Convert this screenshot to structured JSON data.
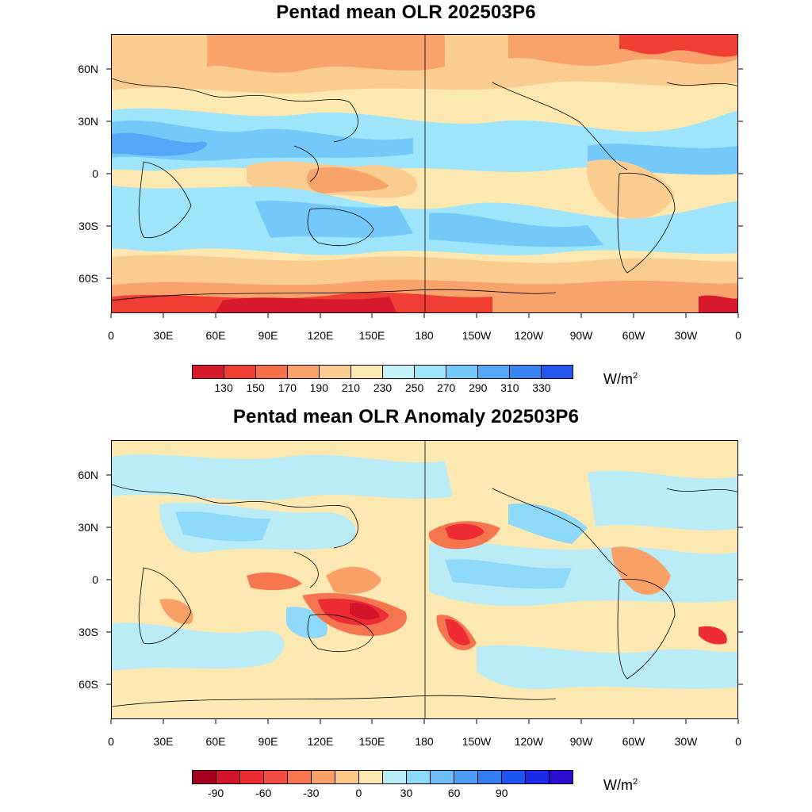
{
  "panels": [
    {
      "title": "Pentad mean OLR 202503P6",
      "lat_labels": [
        "60N",
        "30N",
        "0",
        "30S",
        "60S"
      ],
      "lon_labels": [
        "0",
        "30E",
        "60E",
        "90E",
        "120E",
        "150E",
        "180",
        "150W",
        "120W",
        "90W",
        "60W",
        "30W",
        "0"
      ],
      "colorbar": {
        "colors": [
          "#d7192c",
          "#ef3e33",
          "#f6704b",
          "#f8a26c",
          "#fbcc90",
          "#fde9b0",
          "#c4f2f8",
          "#9ee4fb",
          "#75c8fa",
          "#55a6f7",
          "#3a84f2",
          "#2456f0"
        ],
        "labels": [
          "130",
          "150",
          "170",
          "190",
          "210",
          "230",
          "250",
          "270",
          "290",
          "310",
          "330"
        ],
        "unit": "W/m",
        "unit_sup": "2"
      }
    },
    {
      "title": "Pentad mean OLR Anomaly 202503P6",
      "lat_labels": [
        "60N",
        "30N",
        "0",
        "30S",
        "60S"
      ],
      "lon_labels": [
        "0",
        "30E",
        "60E",
        "90E",
        "120E",
        "150E",
        "180",
        "150W",
        "120W",
        "90W",
        "60W",
        "30W",
        "0"
      ],
      "colorbar": {
        "colors": [
          "#a5001e",
          "#d21429",
          "#ed2c34",
          "#f24a44",
          "#f5754f",
          "#f8a065",
          "#fbc88a",
          "#fde8b1",
          "#b9ecf7",
          "#8ed8fa",
          "#6ebdf9",
          "#4f9cf5",
          "#337cf1",
          "#1e55ee",
          "#1a2ae6",
          "#2b0fd0"
        ],
        "labels": [
          "-90",
          "-60",
          "-30",
          "0",
          "30",
          "60",
          "90"
        ],
        "unit": "W/m",
        "unit_sup": "2"
      }
    }
  ]
}
